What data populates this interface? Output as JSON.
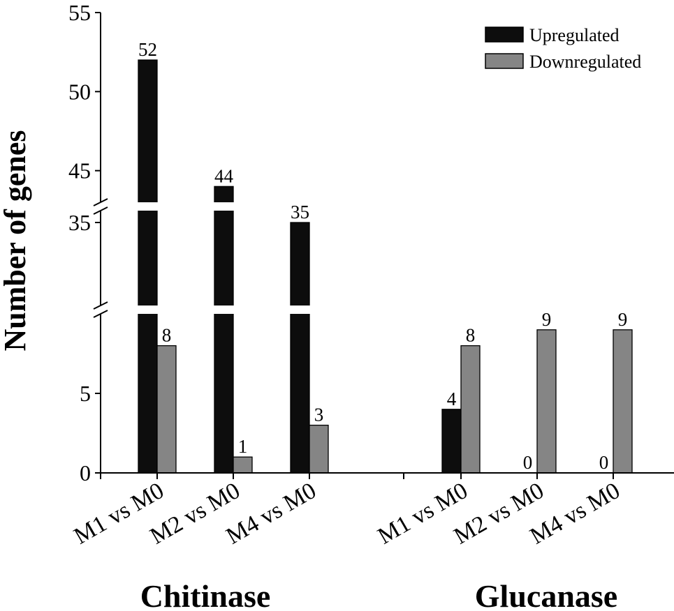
{
  "chart_data": {
    "type": "bar",
    "title": "",
    "ylabel": "Number of genes",
    "xlabel": "",
    "ylim": [
      0,
      55
    ],
    "axis_break": {
      "lower_segment": [
        0,
        10
      ],
      "middle_segment": [
        28,
        36
      ],
      "upper_segment": [
        43,
        55
      ]
    },
    "y_ticks": [
      0,
      5,
      35,
      45,
      50,
      55
    ],
    "legend": {
      "position": "top-right",
      "entries": [
        "Upregulated",
        "Downregulated"
      ]
    },
    "categories": [
      "M1 vs M0",
      "M2 vs M0",
      "M4 vs M0",
      "M1 vs M0",
      "M2 vs M0",
      "M4 vs M0"
    ],
    "groups": [
      {
        "name": "Chitinase",
        "categories": [
          "M1 vs M0",
          "M2 vs M0",
          "M4 vs M0"
        ]
      },
      {
        "name": "Glucanase",
        "categories": [
          "M1 vs M0",
          "M2 vs M0",
          "M4 vs M0"
        ]
      }
    ],
    "series": [
      {
        "name": "Upregulated",
        "color": "#0d0d0d",
        "values": [
          52,
          44,
          35,
          4,
          0,
          0
        ]
      },
      {
        "name": "Downregulated",
        "color": "#858585",
        "values": [
          8,
          1,
          3,
          8,
          9,
          9
        ]
      }
    ]
  }
}
